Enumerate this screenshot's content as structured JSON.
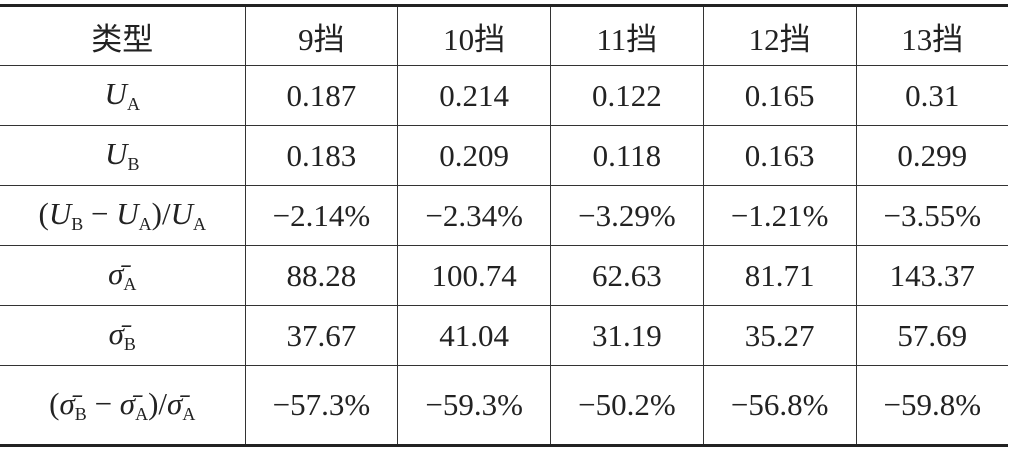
{
  "table": {
    "header": [
      "类型",
      "9挡",
      "10挡",
      "11挡",
      "12挡",
      "13挡"
    ],
    "rows": [
      {
        "label": [
          {
            "text": "U",
            "sub": "A"
          }
        ],
        "cells": [
          "0.187",
          "0.214",
          "0.122",
          "0.165",
          "0.31"
        ]
      },
      {
        "label": [
          {
            "text": "U",
            "sub": "B"
          }
        ],
        "cells": [
          "0.183",
          "0.209",
          "0.118",
          "0.163",
          "0.299"
        ]
      },
      {
        "label": [
          "(",
          {
            "text": "U",
            "sub": "B"
          },
          " − ",
          {
            "text": "U",
            "sub": "A"
          },
          ")/",
          {
            "text": "U",
            "sub": "A"
          }
        ],
        "cells": [
          "−2.14%",
          "−2.34%",
          "−3.29%",
          "−1.21%",
          "−3.55%"
        ]
      },
      {
        "label": [
          {
            "text": "σ̄",
            "sub": "A"
          }
        ],
        "cells": [
          "88.28",
          "100.74",
          "62.63",
          "81.71",
          "143.37"
        ]
      },
      {
        "label": [
          {
            "text": "σ̄",
            "sub": "B"
          }
        ],
        "cells": [
          "37.67",
          "41.04",
          "31.19",
          "35.27",
          "57.69"
        ]
      },
      {
        "label": [
          "(",
          {
            "text": "σ̄",
            "sub": "B"
          },
          " − ",
          {
            "text": "σ̄",
            "sub": "A"
          },
          ")/",
          {
            "text": "σ̄",
            "sub": "A"
          }
        ],
        "cells": [
          "−57.3%",
          "−59.3%",
          "−50.2%",
          "−56.8%",
          "−59.8%"
        ]
      }
    ]
  }
}
